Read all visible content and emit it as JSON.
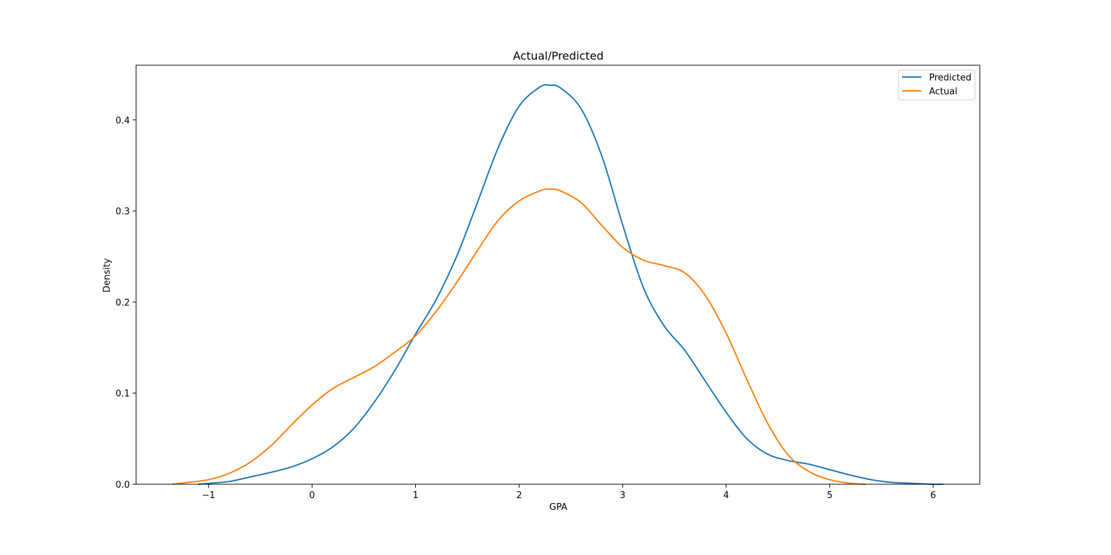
{
  "chart_data": {
    "type": "line",
    "title": "Actual/Predicted",
    "xlabel": "GPA",
    "ylabel": "Density",
    "xlim": [
      -1.7,
      6.45
    ],
    "ylim": [
      0.0,
      0.46
    ],
    "x_ticks": [
      -1,
      0,
      1,
      2,
      3,
      4,
      5,
      6
    ],
    "x_tick_labels": [
      "−1",
      "0",
      "1",
      "2",
      "3",
      "4",
      "5",
      "6"
    ],
    "y_ticks": [
      0.0,
      0.1,
      0.2,
      0.3,
      0.4
    ],
    "y_tick_labels": [
      "0.0",
      "0.1",
      "0.2",
      "0.3",
      "0.4"
    ],
    "grid": false,
    "legend_position": "top-right",
    "series": [
      {
        "name": "Predicted",
        "color": "#1f77b4",
        "points": [
          [
            -1.1,
            0.0
          ],
          [
            -1.0,
            0.001
          ],
          [
            -0.8,
            0.003
          ],
          [
            -0.6,
            0.008
          ],
          [
            -0.4,
            0.013
          ],
          [
            -0.2,
            0.019
          ],
          [
            0.0,
            0.028
          ],
          [
            0.2,
            0.041
          ],
          [
            0.4,
            0.061
          ],
          [
            0.6,
            0.09
          ],
          [
            0.8,
            0.125
          ],
          [
            1.0,
            0.165
          ],
          [
            1.2,
            0.203
          ],
          [
            1.4,
            0.251
          ],
          [
            1.6,
            0.31
          ],
          [
            1.8,
            0.37
          ],
          [
            2.0,
            0.415
          ],
          [
            2.2,
            0.436
          ],
          [
            2.3,
            0.438
          ],
          [
            2.4,
            0.435
          ],
          [
            2.6,
            0.412
          ],
          [
            2.8,
            0.36
          ],
          [
            3.0,
            0.285
          ],
          [
            3.2,
            0.216
          ],
          [
            3.4,
            0.174
          ],
          [
            3.6,
            0.147
          ],
          [
            3.8,
            0.113
          ],
          [
            4.0,
            0.079
          ],
          [
            4.2,
            0.05
          ],
          [
            4.4,
            0.033
          ],
          [
            4.6,
            0.026
          ],
          [
            4.8,
            0.022
          ],
          [
            5.0,
            0.016
          ],
          [
            5.2,
            0.01
          ],
          [
            5.4,
            0.005
          ],
          [
            5.6,
            0.002
          ],
          [
            5.8,
            0.001
          ],
          [
            6.0,
            0.0
          ],
          [
            6.1,
            0.0
          ]
        ]
      },
      {
        "name": "Actual",
        "color": "#ff7f0e",
        "points": [
          [
            -1.35,
            0.0
          ],
          [
            -1.2,
            0.002
          ],
          [
            -1.0,
            0.005
          ],
          [
            -0.8,
            0.012
          ],
          [
            -0.6,
            0.024
          ],
          [
            -0.4,
            0.042
          ],
          [
            -0.2,
            0.065
          ],
          [
            0.0,
            0.087
          ],
          [
            0.2,
            0.105
          ],
          [
            0.4,
            0.117
          ],
          [
            0.6,
            0.129
          ],
          [
            0.8,
            0.145
          ],
          [
            1.0,
            0.163
          ],
          [
            1.2,
            0.19
          ],
          [
            1.4,
            0.222
          ],
          [
            1.6,
            0.257
          ],
          [
            1.8,
            0.29
          ],
          [
            2.0,
            0.311
          ],
          [
            2.2,
            0.322
          ],
          [
            2.3,
            0.324
          ],
          [
            2.4,
            0.322
          ],
          [
            2.6,
            0.309
          ],
          [
            2.8,
            0.284
          ],
          [
            3.0,
            0.26
          ],
          [
            3.2,
            0.246
          ],
          [
            3.4,
            0.24
          ],
          [
            3.6,
            0.232
          ],
          [
            3.8,
            0.207
          ],
          [
            4.0,
            0.166
          ],
          [
            4.2,
            0.115
          ],
          [
            4.4,
            0.067
          ],
          [
            4.6,
            0.032
          ],
          [
            4.8,
            0.014
          ],
          [
            5.0,
            0.005
          ],
          [
            5.2,
            0.001
          ],
          [
            5.35,
            0.0
          ]
        ]
      }
    ]
  }
}
